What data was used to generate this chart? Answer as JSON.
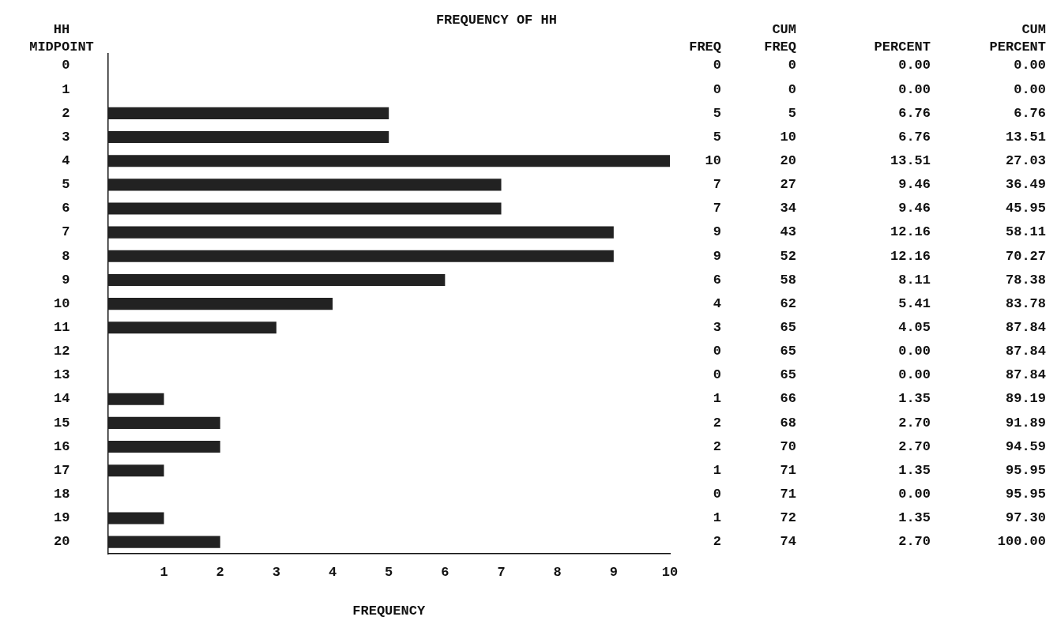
{
  "chart_data": {
    "type": "bar",
    "orientation": "horizontal",
    "title": "FREQUENCY OF HH",
    "xlabel": "FREQUENCY",
    "ylabel": "HH MIDPOINT",
    "categories": [
      "0",
      "1",
      "2",
      "3",
      "4",
      "5",
      "6",
      "7",
      "8",
      "9",
      "10",
      "11",
      "12",
      "13",
      "14",
      "15",
      "16",
      "17",
      "18",
      "19",
      "20"
    ],
    "values": [
      0,
      0,
      5,
      5,
      10,
      7,
      7,
      9,
      9,
      6,
      4,
      3,
      0,
      0,
      1,
      2,
      2,
      1,
      0,
      1,
      2
    ],
    "color": "#222222",
    "xlim": [
      0,
      10
    ],
    "xticks": [
      1,
      2,
      3,
      4,
      5,
      6,
      7,
      8,
      9,
      10
    ],
    "grid": false,
    "legend": false,
    "data_labels": true,
    "annotations": [
      "FREQ",
      "CUM FREQ",
      "PERCENT",
      "CUM PERCENT",
      "0",
      "0.00",
      "0.00",
      "0",
      "0.00",
      "0.00",
      "5",
      "6.76",
      "6.76",
      "10",
      "6.76",
      "13.51",
      "20",
      "13.51",
      "27.03",
      "27",
      "9.46",
      "36.49",
      "34",
      "9.46",
      "45.95",
      "43",
      "12.16",
      "58.11",
      "52",
      "12.16",
      "70.27",
      "58",
      "8.11",
      "78.38",
      "62",
      "5.41",
      "83.78",
      "65",
      "4.05",
      "87.84",
      "65",
      "0.00",
      "87.84",
      "65",
      "0.00",
      "87.84",
      "66",
      "1.35",
      "89.19",
      "68",
      "2.70",
      "91.89",
      "70",
      "2.70",
      "94.59",
      "71",
      "1.35",
      "95.95",
      "71",
      "0.00",
      "95.95",
      "72",
      "1.35",
      "97.30",
      "74",
      "2.70",
      "100.00"
    ]
  }
}
